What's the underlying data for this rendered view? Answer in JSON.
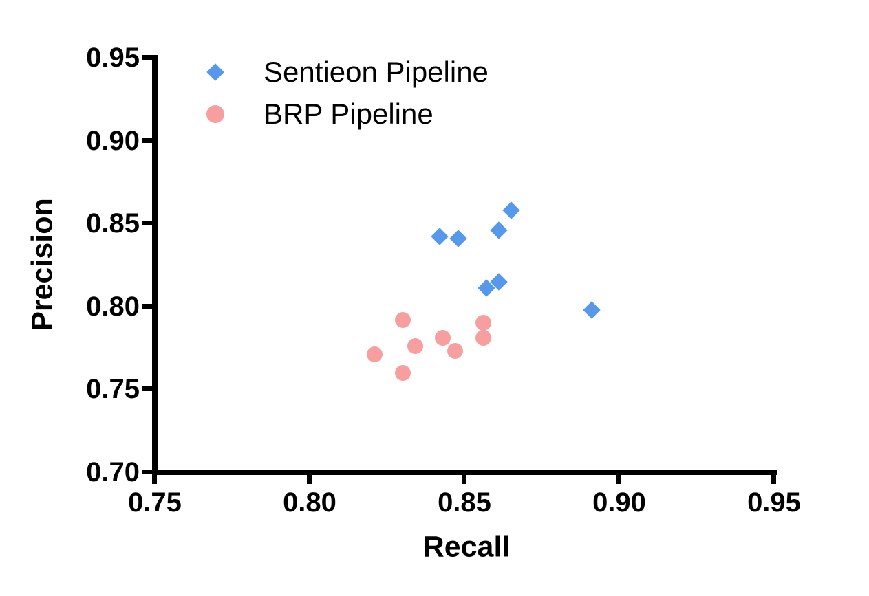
{
  "chart_data": {
    "type": "scatter",
    "title": "",
    "xlabel": "Recall",
    "ylabel": "Precision",
    "xlim": [
      0.75,
      0.95
    ],
    "ylim": [
      0.7,
      0.95
    ],
    "xtick_labels": [
      "0.75",
      "0.80",
      "0.85",
      "0.90",
      "0.95"
    ],
    "ytick_labels": [
      "0.70",
      "0.75",
      "0.80",
      "0.85",
      "0.90",
      "0.95"
    ],
    "grid": false,
    "legend_position": "inside-top-left",
    "axis_color": "#000000",
    "background_color": "#ffffff",
    "series": [
      {
        "name": "Sentieon Pipeline",
        "marker": "diamond",
        "color": "#5699EC",
        "points": [
          [
            0.842,
            0.842
          ],
          [
            0.848,
            0.841
          ],
          [
            0.861,
            0.846
          ],
          [
            0.865,
            0.858
          ],
          [
            0.857,
            0.811
          ],
          [
            0.861,
            0.815
          ],
          [
            0.891,
            0.798
          ]
        ]
      },
      {
        "name": "BRP Pipeline",
        "marker": "circle",
        "color": "#F79E9F",
        "points": [
          [
            0.821,
            0.771
          ],
          [
            0.83,
            0.792
          ],
          [
            0.83,
            0.76
          ],
          [
            0.834,
            0.776
          ],
          [
            0.843,
            0.781
          ],
          [
            0.847,
            0.773
          ],
          [
            0.856,
            0.79
          ],
          [
            0.856,
            0.781
          ]
        ]
      }
    ]
  }
}
